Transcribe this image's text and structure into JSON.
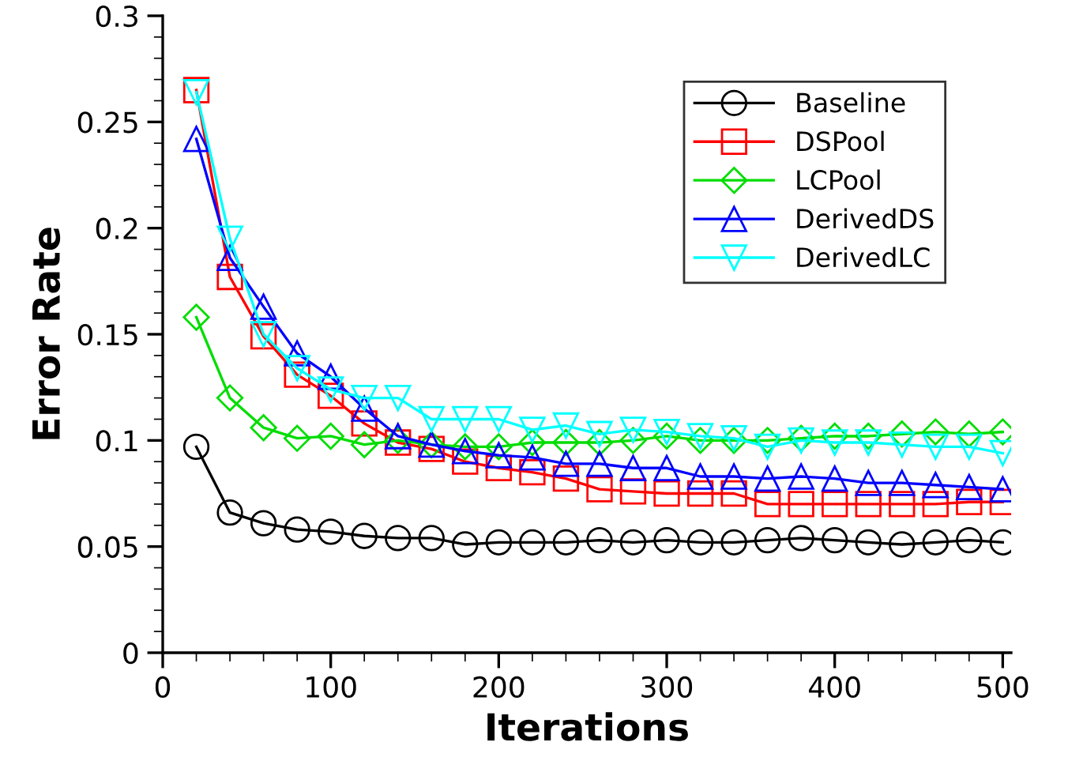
{
  "chart_data": {
    "type": "line",
    "xlabel": "Iterations",
    "ylabel": "Error Rate",
    "x": [
      20,
      40,
      60,
      80,
      100,
      120,
      140,
      160,
      180,
      200,
      220,
      240,
      260,
      280,
      300,
      320,
      340,
      360,
      380,
      400,
      420,
      440,
      460,
      480,
      500
    ],
    "series": [
      {
        "name": "Baseline",
        "color": "#000000",
        "marker": "circle",
        "values": [
          0.097,
          0.066,
          0.061,
          0.058,
          0.057,
          0.055,
          0.054,
          0.054,
          0.051,
          0.052,
          0.052,
          0.052,
          0.053,
          0.052,
          0.053,
          0.052,
          0.052,
          0.053,
          0.054,
          0.053,
          0.052,
          0.051,
          0.052,
          0.053,
          0.052
        ]
      },
      {
        "name": "DSPool",
        "color": "#ff0000",
        "marker": "square",
        "values": [
          0.265,
          0.177,
          0.149,
          0.131,
          0.121,
          0.108,
          0.099,
          0.096,
          0.09,
          0.087,
          0.085,
          0.082,
          0.077,
          0.076,
          0.075,
          0.075,
          0.075,
          0.07,
          0.07,
          0.07,
          0.07,
          0.07,
          0.07,
          0.071,
          0.071
        ]
      },
      {
        "name": "LCPool",
        "color": "#00dd00",
        "marker": "diamond",
        "values": [
          0.158,
          0.12,
          0.106,
          0.101,
          0.102,
          0.098,
          0.1,
          0.098,
          0.097,
          0.097,
          0.099,
          0.099,
          0.099,
          0.1,
          0.102,
          0.1,
          0.1,
          0.1,
          0.101,
          0.102,
          0.102,
          0.103,
          0.104,
          0.103,
          0.104
        ]
      },
      {
        "name": "DerivedDS",
        "color": "#0000ff",
        "marker": "triangle",
        "values": [
          0.242,
          0.186,
          0.163,
          0.141,
          0.13,
          0.115,
          0.102,
          0.098,
          0.095,
          0.093,
          0.092,
          0.089,
          0.089,
          0.087,
          0.087,
          0.083,
          0.083,
          0.082,
          0.083,
          0.082,
          0.08,
          0.08,
          0.079,
          0.078,
          0.077
        ]
      },
      {
        "name": "DerivedLC",
        "color": "#00ffff",
        "marker": "triangle_down",
        "values": [
          0.264,
          0.195,
          0.15,
          0.134,
          0.124,
          0.12,
          0.12,
          0.11,
          0.11,
          0.11,
          0.105,
          0.107,
          0.103,
          0.105,
          0.104,
          0.102,
          0.101,
          0.097,
          0.1,
          0.099,
          0.099,
          0.098,
          0.097,
          0.097,
          0.094
        ]
      }
    ],
    "xlim": [
      0,
      505
    ],
    "xticks": [
      0,
      100,
      200,
      300,
      400,
      500
    ],
    "ylim": [
      0,
      0.3
    ],
    "yticks": [
      0,
      0.05,
      0.1,
      0.15,
      0.2,
      0.25,
      0.3
    ],
    "grid": false,
    "legend": "top right"
  }
}
